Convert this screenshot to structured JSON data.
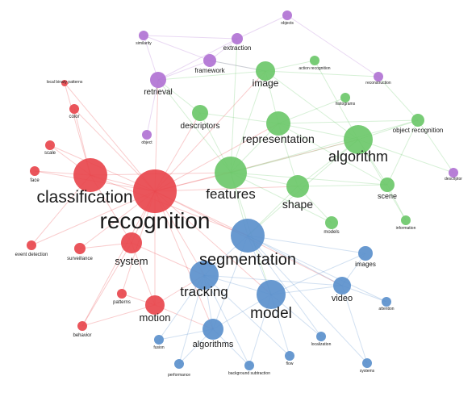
{
  "colors": {
    "red": "#e8474d",
    "green": "#6dc86a",
    "blue": "#5b90cc",
    "purple": "#b173d4"
  },
  "nodes": [
    {
      "id": "recognition",
      "label": "recognition",
      "cluster": "red"
    },
    {
      "id": "classification",
      "label": "classification",
      "cluster": "red"
    },
    {
      "id": "system",
      "label": "system",
      "cluster": "red"
    },
    {
      "id": "motion",
      "label": "motion",
      "cluster": "red"
    },
    {
      "id": "surveillance",
      "label": "surveillance",
      "cluster": "red"
    },
    {
      "id": "patterns",
      "label": "patterns",
      "cluster": "red"
    },
    {
      "id": "event-detection",
      "label": "event detection",
      "cluster": "red"
    },
    {
      "id": "behavior",
      "label": "behavior",
      "cluster": "red"
    },
    {
      "id": "local-binary-patterns",
      "label": "local binary patterns",
      "cluster": "red"
    },
    {
      "id": "color",
      "label": "color",
      "cluster": "red"
    },
    {
      "id": "scale",
      "label": "scale",
      "cluster": "red"
    },
    {
      "id": "face",
      "label": "face",
      "cluster": "red"
    },
    {
      "id": "features",
      "label": "features",
      "cluster": "green"
    },
    {
      "id": "representation",
      "label": "representation",
      "cluster": "green"
    },
    {
      "id": "algorithm",
      "label": "algorithm",
      "cluster": "green"
    },
    {
      "id": "shape",
      "label": "shape",
      "cluster": "green"
    },
    {
      "id": "image",
      "label": "image",
      "cluster": "green"
    },
    {
      "id": "descriptors",
      "label": "descriptors",
      "cluster": "green"
    },
    {
      "id": "scene",
      "label": "scene",
      "cluster": "green"
    },
    {
      "id": "object-recognition",
      "label": "object recognition",
      "cluster": "green"
    },
    {
      "id": "models",
      "label": "models",
      "cluster": "green"
    },
    {
      "id": "information",
      "label": "information",
      "cluster": "green"
    },
    {
      "id": "histograms",
      "label": "histograms",
      "cluster": "green"
    },
    {
      "id": "action-recognition",
      "label": "action recognition",
      "cluster": "green"
    },
    {
      "id": "segmentation",
      "label": "segmentation",
      "cluster": "blue"
    },
    {
      "id": "tracking",
      "label": "tracking",
      "cluster": "blue"
    },
    {
      "id": "model",
      "label": "model",
      "cluster": "blue"
    },
    {
      "id": "video",
      "label": "video",
      "cluster": "blue"
    },
    {
      "id": "algorithms",
      "label": "algorithms",
      "cluster": "blue"
    },
    {
      "id": "images",
      "label": "images",
      "cluster": "blue"
    },
    {
      "id": "attention",
      "label": "attention",
      "cluster": "blue"
    },
    {
      "id": "localization",
      "label": "localization",
      "cluster": "blue"
    },
    {
      "id": "flow",
      "label": "flow",
      "cluster": "blue"
    },
    {
      "id": "systems",
      "label": "systems",
      "cluster": "blue"
    },
    {
      "id": "fusion",
      "label": "fusion",
      "cluster": "blue"
    },
    {
      "id": "performance",
      "label": "performance",
      "cluster": "blue"
    },
    {
      "id": "background-subtraction",
      "label": "background subtraction",
      "cluster": "blue"
    },
    {
      "id": "retrieval",
      "label": "retrieval",
      "cluster": "purple"
    },
    {
      "id": "framework",
      "label": "framework",
      "cluster": "purple"
    },
    {
      "id": "extraction",
      "label": "extraction",
      "cluster": "purple"
    },
    {
      "id": "similarity",
      "label": "similarity",
      "cluster": "purple"
    },
    {
      "id": "objects",
      "label": "objects",
      "cluster": "purple"
    },
    {
      "id": "object",
      "label": "object",
      "cluster": "purple"
    },
    {
      "id": "reconstruction",
      "label": "reconstruction",
      "cluster": "purple"
    },
    {
      "id": "descriptor",
      "label": "descriptor",
      "cluster": "purple"
    }
  ],
  "edges": [
    [
      "recognition",
      "classification"
    ],
    [
      "recognition",
      "system"
    ],
    [
      "recognition",
      "motion"
    ],
    [
      "recognition",
      "features"
    ],
    [
      "recognition",
      "segmentation"
    ],
    [
      "recognition",
      "tracking"
    ],
    [
      "recognition",
      "representation"
    ],
    [
      "recognition",
      "algorithm"
    ],
    [
      "recognition",
      "image"
    ],
    [
      "recognition",
      "model"
    ],
    [
      "recognition",
      "face"
    ],
    [
      "recognition",
      "scale"
    ],
    [
      "recognition",
      "color"
    ],
    [
      "recognition",
      "local-binary-patterns"
    ],
    [
      "recognition",
      "surveillance"
    ],
    [
      "recognition",
      "patterns"
    ],
    [
      "recognition",
      "behavior"
    ],
    [
      "recognition",
      "retrieval"
    ],
    [
      "recognition",
      "descriptors"
    ],
    [
      "recognition",
      "shape"
    ],
    [
      "recognition",
      "video"
    ],
    [
      "recognition",
      "algorithms"
    ],
    [
      "recognition",
      "event-detection"
    ],
    [
      "classification",
      "face"
    ],
    [
      "classification",
      "scale"
    ],
    [
      "classification",
      "color"
    ],
    [
      "classification",
      "local-binary-patterns"
    ],
    [
      "classification",
      "features"
    ],
    [
      "classification",
      "system"
    ],
    [
      "classification",
      "event-detection"
    ],
    [
      "classification",
      "segmentation"
    ],
    [
      "system",
      "motion"
    ],
    [
      "system",
      "surveillance"
    ],
    [
      "system",
      "tracking"
    ],
    [
      "system",
      "behavior"
    ],
    [
      "motion",
      "patterns"
    ],
    [
      "motion",
      "behavior"
    ],
    [
      "motion",
      "tracking"
    ],
    [
      "motion",
      "algorithms"
    ],
    [
      "features",
      "representation"
    ],
    [
      "features",
      "algorithm"
    ],
    [
      "features",
      "shape"
    ],
    [
      "features",
      "image"
    ],
    [
      "features",
      "descriptors"
    ],
    [
      "features",
      "segmentation"
    ],
    [
      "features",
      "scene"
    ],
    [
      "features",
      "object-recognition"
    ],
    [
      "features",
      "models"
    ],
    [
      "features",
      "retrieval"
    ],
    [
      "features",
      "extraction"
    ],
    [
      "features",
      "model"
    ],
    [
      "representation",
      "algorithm"
    ],
    [
      "representation",
      "image"
    ],
    [
      "representation",
      "descriptors"
    ],
    [
      "representation",
      "shape"
    ],
    [
      "representation",
      "histograms"
    ],
    [
      "representation",
      "object-recognition"
    ],
    [
      "algorithm",
      "shape"
    ],
    [
      "algorithm",
      "scene"
    ],
    [
      "algorithm",
      "object-recognition"
    ],
    [
      "algorithm",
      "segmentation"
    ],
    [
      "algorithm",
      "image"
    ],
    [
      "algorithm",
      "action-recognition"
    ],
    [
      "algorithm",
      "information"
    ],
    [
      "algorithm",
      "descriptor"
    ],
    [
      "shape",
      "models"
    ],
    [
      "shape",
      "scene"
    ],
    [
      "shape",
      "segmentation"
    ],
    [
      "image",
      "action-recognition"
    ],
    [
      "image",
      "framework"
    ],
    [
      "image",
      "retrieval"
    ],
    [
      "descriptors",
      "retrieval"
    ],
    [
      "scene",
      "information"
    ],
    [
      "scene",
      "object-recognition"
    ],
    [
      "segmentation",
      "tracking"
    ],
    [
      "segmentation",
      "model"
    ],
    [
      "segmentation",
      "video"
    ],
    [
      "segmentation",
      "images"
    ],
    [
      "segmentation",
      "algorithms"
    ],
    [
      "segmentation",
      "localization"
    ],
    [
      "segmentation",
      "systems"
    ],
    [
      "segmentation",
      "attention"
    ],
    [
      "tracking",
      "model"
    ],
    [
      "tracking",
      "video"
    ],
    [
      "tracking",
      "algorithms"
    ],
    [
      "tracking",
      "fusion"
    ],
    [
      "tracking",
      "performance"
    ],
    [
      "tracking",
      "background-subtraction"
    ],
    [
      "tracking",
      "flow"
    ],
    [
      "model",
      "video"
    ],
    [
      "model",
      "algorithms"
    ],
    [
      "model",
      "localization"
    ],
    [
      "model",
      "flow"
    ],
    [
      "model",
      "background-subtraction"
    ],
    [
      "model",
      "images"
    ],
    [
      "video",
      "images"
    ],
    [
      "video",
      "attention"
    ],
    [
      "video",
      "systems"
    ],
    [
      "algorithms",
      "fusion"
    ],
    [
      "algorithms",
      "performance"
    ],
    [
      "algorithms",
      "background-subtraction"
    ],
    [
      "retrieval",
      "framework"
    ],
    [
      "retrieval",
      "similarity"
    ],
    [
      "retrieval",
      "object"
    ],
    [
      "retrieval",
      "extraction"
    ],
    [
      "framework",
      "extraction"
    ],
    [
      "framework",
      "similarity"
    ],
    [
      "framework",
      "image"
    ],
    [
      "extraction",
      "objects"
    ],
    [
      "extraction",
      "similarity"
    ],
    [
      "objects",
      "reconstruction"
    ],
    [
      "image",
      "reconstruction"
    ],
    [
      "object-recognition",
      "descriptor"
    ],
    [
      "object-recognition",
      "reconstruction"
    ],
    [
      "representation",
      "scene"
    ]
  ]
}
